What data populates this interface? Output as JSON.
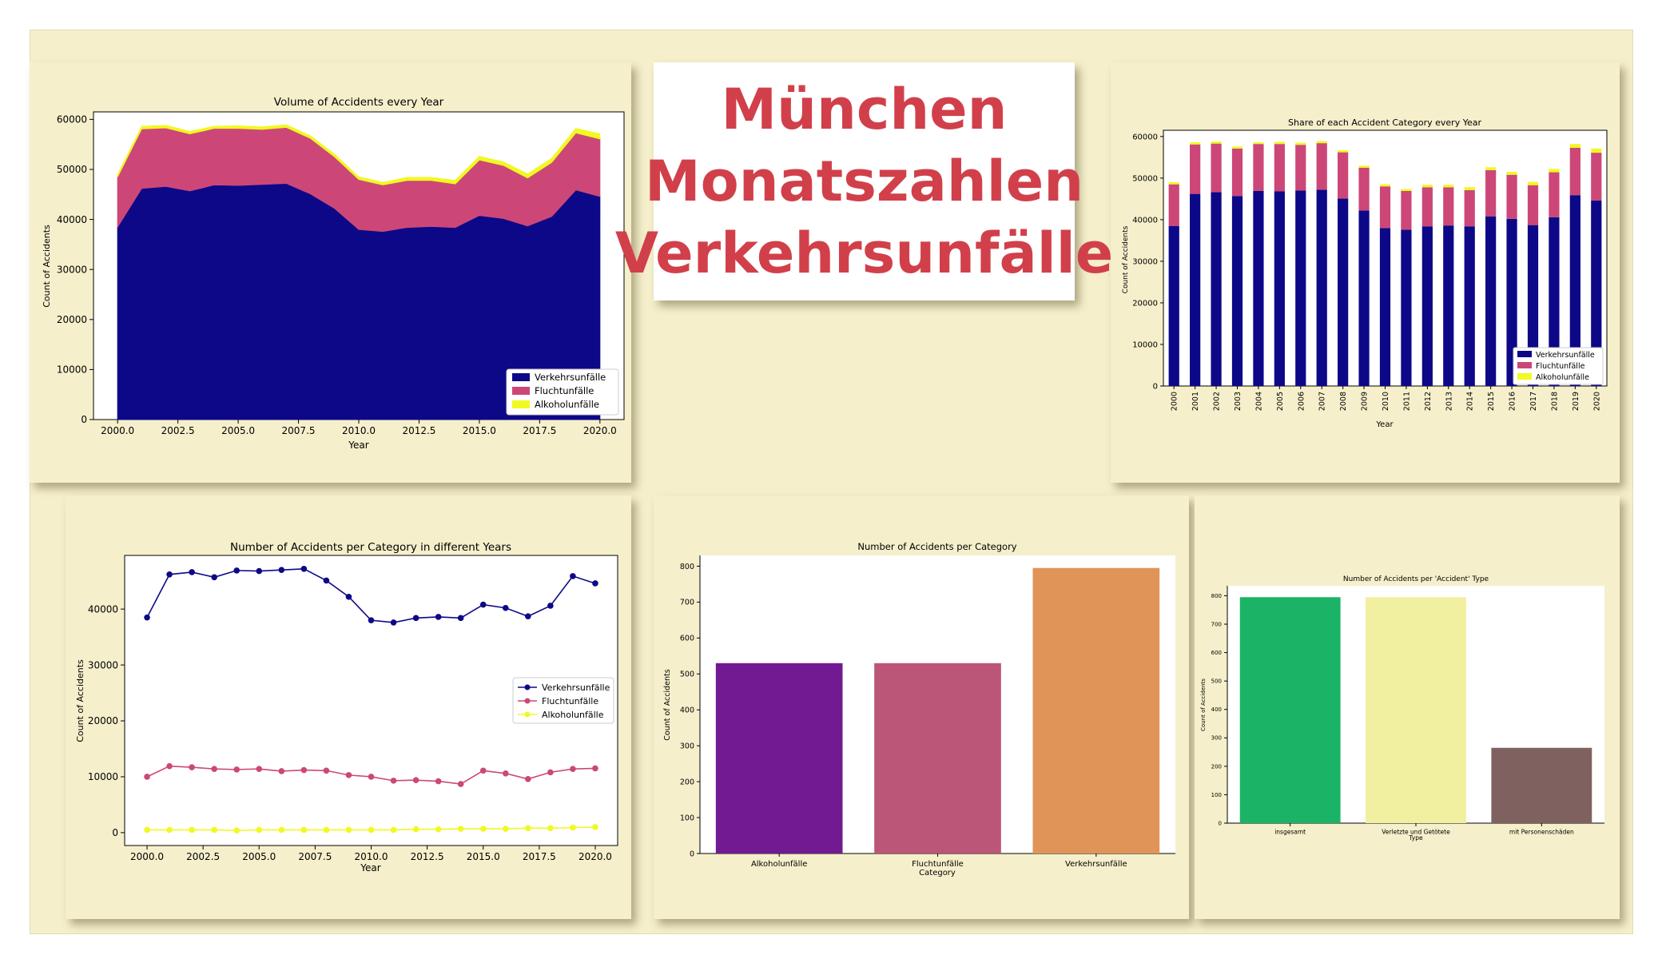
{
  "title_lines": [
    "München",
    "Monatszahlen",
    "Verkehrsunfälle"
  ],
  "colors": {
    "board": "#f5efcb",
    "title": "#d1404a",
    "verkehr": "#0d0887",
    "flucht": "#cc4778",
    "alkohol": "#f0f921",
    "bar_alkohol": "#721a91",
    "bar_flucht": "#bb5679",
    "bar_verkehr": "#e09457",
    "type_insgesamt": "#1bb466",
    "type_verletzte": "#f0f0a0",
    "type_personen": "#7f6260"
  },
  "chart_data": [
    {
      "id": "volume",
      "type": "area",
      "title": "Volume of Accidents every Year",
      "xlabel": "Year",
      "ylabel": "Count of Accidents",
      "xlim": [
        1999,
        2021
      ],
      "ylim": [
        0,
        61500
      ],
      "xticks": [
        "2000.0",
        "2002.5",
        "2005.0",
        "2007.5",
        "2010.0",
        "2012.5",
        "2015.0",
        "2017.5",
        "2020.0"
      ],
      "xtick_values": [
        2000,
        2002.5,
        2005,
        2007.5,
        2010,
        2012.5,
        2015,
        2017.5,
        2020
      ],
      "yticks": [
        "0",
        "10000",
        "20000",
        "30000",
        "40000",
        "50000",
        "60000"
      ],
      "ytick_values": [
        0,
        10000,
        20000,
        30000,
        40000,
        50000,
        60000
      ],
      "stacked": true,
      "legend": "lower-right",
      "x": [
        2000,
        2001,
        2002,
        2003,
        2004,
        2005,
        2006,
        2007,
        2008,
        2009,
        2010,
        2011,
        2012,
        2013,
        2014,
        2015,
        2016,
        2017,
        2018,
        2019,
        2020
      ],
      "series": [
        {
          "name": "Verkehrsunfälle",
          "values": [
            38500,
            46200,
            46600,
            45700,
            46900,
            46800,
            47000,
            47200,
            45100,
            42200,
            38000,
            37600,
            38400,
            38600,
            38400,
            40800,
            40200,
            38700,
            40600,
            45900,
            44600
          ]
        },
        {
          "name": "Fluchtunfälle",
          "values": [
            10000,
            11900,
            11700,
            11400,
            11300,
            11400,
            11000,
            11200,
            11100,
            10300,
            10000,
            9300,
            9400,
            9200,
            8700,
            11100,
            10600,
            9600,
            10800,
            11400,
            11500
          ]
        },
        {
          "name": "Alkoholunfälle",
          "values": [
            500,
            500,
            500,
            500,
            400,
            500,
            500,
            500,
            500,
            500,
            500,
            500,
            600,
            600,
            700,
            700,
            700,
            800,
            800,
            900,
            1000
          ]
        }
      ]
    },
    {
      "id": "share",
      "type": "bar",
      "title": "Share of each Accident Category every Year",
      "xlabel": "Year",
      "ylabel": "Count of Accidents",
      "ylim": [
        0,
        61500
      ],
      "yticks": [
        "0",
        "10000",
        "20000",
        "30000",
        "40000",
        "50000",
        "60000"
      ],
      "ytick_values": [
        0,
        10000,
        20000,
        30000,
        40000,
        50000,
        60000
      ],
      "stacked": true,
      "legend": "lower-right",
      "categories": [
        "2000",
        "2001",
        "2002",
        "2003",
        "2004",
        "2005",
        "2006",
        "2007",
        "2008",
        "2009",
        "2010",
        "2011",
        "2012",
        "2013",
        "2014",
        "2015",
        "2016",
        "2017",
        "2018",
        "2019",
        "2020"
      ],
      "series": [
        {
          "name": "Verkehrsunfälle",
          "values": [
            38500,
            46200,
            46600,
            45700,
            46900,
            46800,
            47000,
            47200,
            45100,
            42200,
            38000,
            37600,
            38400,
            38600,
            38400,
            40800,
            40200,
            38700,
            40600,
            45900,
            44600
          ]
        },
        {
          "name": "Fluchtunfälle",
          "values": [
            10000,
            11900,
            11700,
            11400,
            11300,
            11400,
            11000,
            11200,
            11100,
            10300,
            10000,
            9300,
            9400,
            9200,
            8700,
            11100,
            10600,
            9600,
            10800,
            11400,
            11500
          ]
        },
        {
          "name": "Alkoholunfälle",
          "values": [
            500,
            500,
            500,
            500,
            400,
            500,
            500,
            500,
            500,
            500,
            500,
            500,
            600,
            600,
            700,
            700,
            700,
            800,
            800,
            900,
            1000
          ]
        }
      ]
    },
    {
      "id": "lines",
      "type": "line",
      "title": "Number of Accidents per Category in different Years",
      "xlabel": "Year",
      "ylabel": "Count of Accidents",
      "xlim": [
        1999,
        2021
      ],
      "ylim": [
        -2300,
        49600
      ],
      "xticks": [
        "2000.0",
        "2002.5",
        "2005.0",
        "2007.5",
        "2010.0",
        "2012.5",
        "2015.0",
        "2017.5",
        "2020.0"
      ],
      "xtick_values": [
        2000,
        2002.5,
        2005,
        2007.5,
        2010,
        2012.5,
        2015,
        2017.5,
        2020
      ],
      "yticks": [
        "0",
        "10000",
        "20000",
        "30000",
        "40000"
      ],
      "ytick_values": [
        0,
        10000,
        20000,
        30000,
        40000
      ],
      "legend": "center-right",
      "x": [
        2000,
        2001,
        2002,
        2003,
        2004,
        2005,
        2006,
        2007,
        2008,
        2009,
        2010,
        2011,
        2012,
        2013,
        2014,
        2015,
        2016,
        2017,
        2018,
        2019,
        2020
      ],
      "series": [
        {
          "name": "Verkehrsunfälle",
          "values": [
            38500,
            46200,
            46600,
            45700,
            46900,
            46800,
            47000,
            47200,
            45100,
            42200,
            38000,
            37600,
            38400,
            38600,
            38400,
            40800,
            40200,
            38700,
            40600,
            45900,
            44600
          ]
        },
        {
          "name": "Fluchtunfälle",
          "values": [
            10000,
            11900,
            11700,
            11400,
            11300,
            11400,
            11000,
            11200,
            11100,
            10300,
            10000,
            9300,
            9400,
            9200,
            8700,
            11100,
            10600,
            9600,
            10800,
            11400,
            11500
          ]
        },
        {
          "name": "Alkoholunfälle",
          "values": [
            500,
            500,
            500,
            500,
            400,
            500,
            500,
            500,
            500,
            500,
            500,
            500,
            600,
            600,
            700,
            700,
            700,
            800,
            800,
            900,
            1000
          ]
        }
      ]
    },
    {
      "id": "category",
      "type": "bar",
      "title": "Number of Accidents per Category",
      "xlabel": "Category",
      "ylabel": "Count of Accidents",
      "ylim": [
        0,
        830
      ],
      "yticks": [
        "0",
        "100",
        "200",
        "300",
        "400",
        "500",
        "600",
        "700",
        "800"
      ],
      "ytick_values": [
        0,
        100,
        200,
        300,
        400,
        500,
        600,
        700,
        800
      ],
      "categories": [
        "Alkoholunfälle",
        "Fluchtunfälle",
        "Verkehrsunfälle"
      ],
      "values": [
        530,
        530,
        795
      ]
    },
    {
      "id": "type",
      "type": "bar",
      "title": "Number of Accidents per 'Accident' Type",
      "xlabel": "Type",
      "ylabel": "Count of Accidents",
      "ylim": [
        0,
        835
      ],
      "yticks": [
        "0",
        "100",
        "200",
        "300",
        "400",
        "500",
        "600",
        "700",
        "800"
      ],
      "ytick_values": [
        0,
        100,
        200,
        300,
        400,
        500,
        600,
        700,
        800
      ],
      "categories": [
        "insgesamt",
        "Verletzte und Getötete",
        "mit Personenschäden"
      ],
      "values": [
        795,
        795,
        265
      ]
    }
  ]
}
